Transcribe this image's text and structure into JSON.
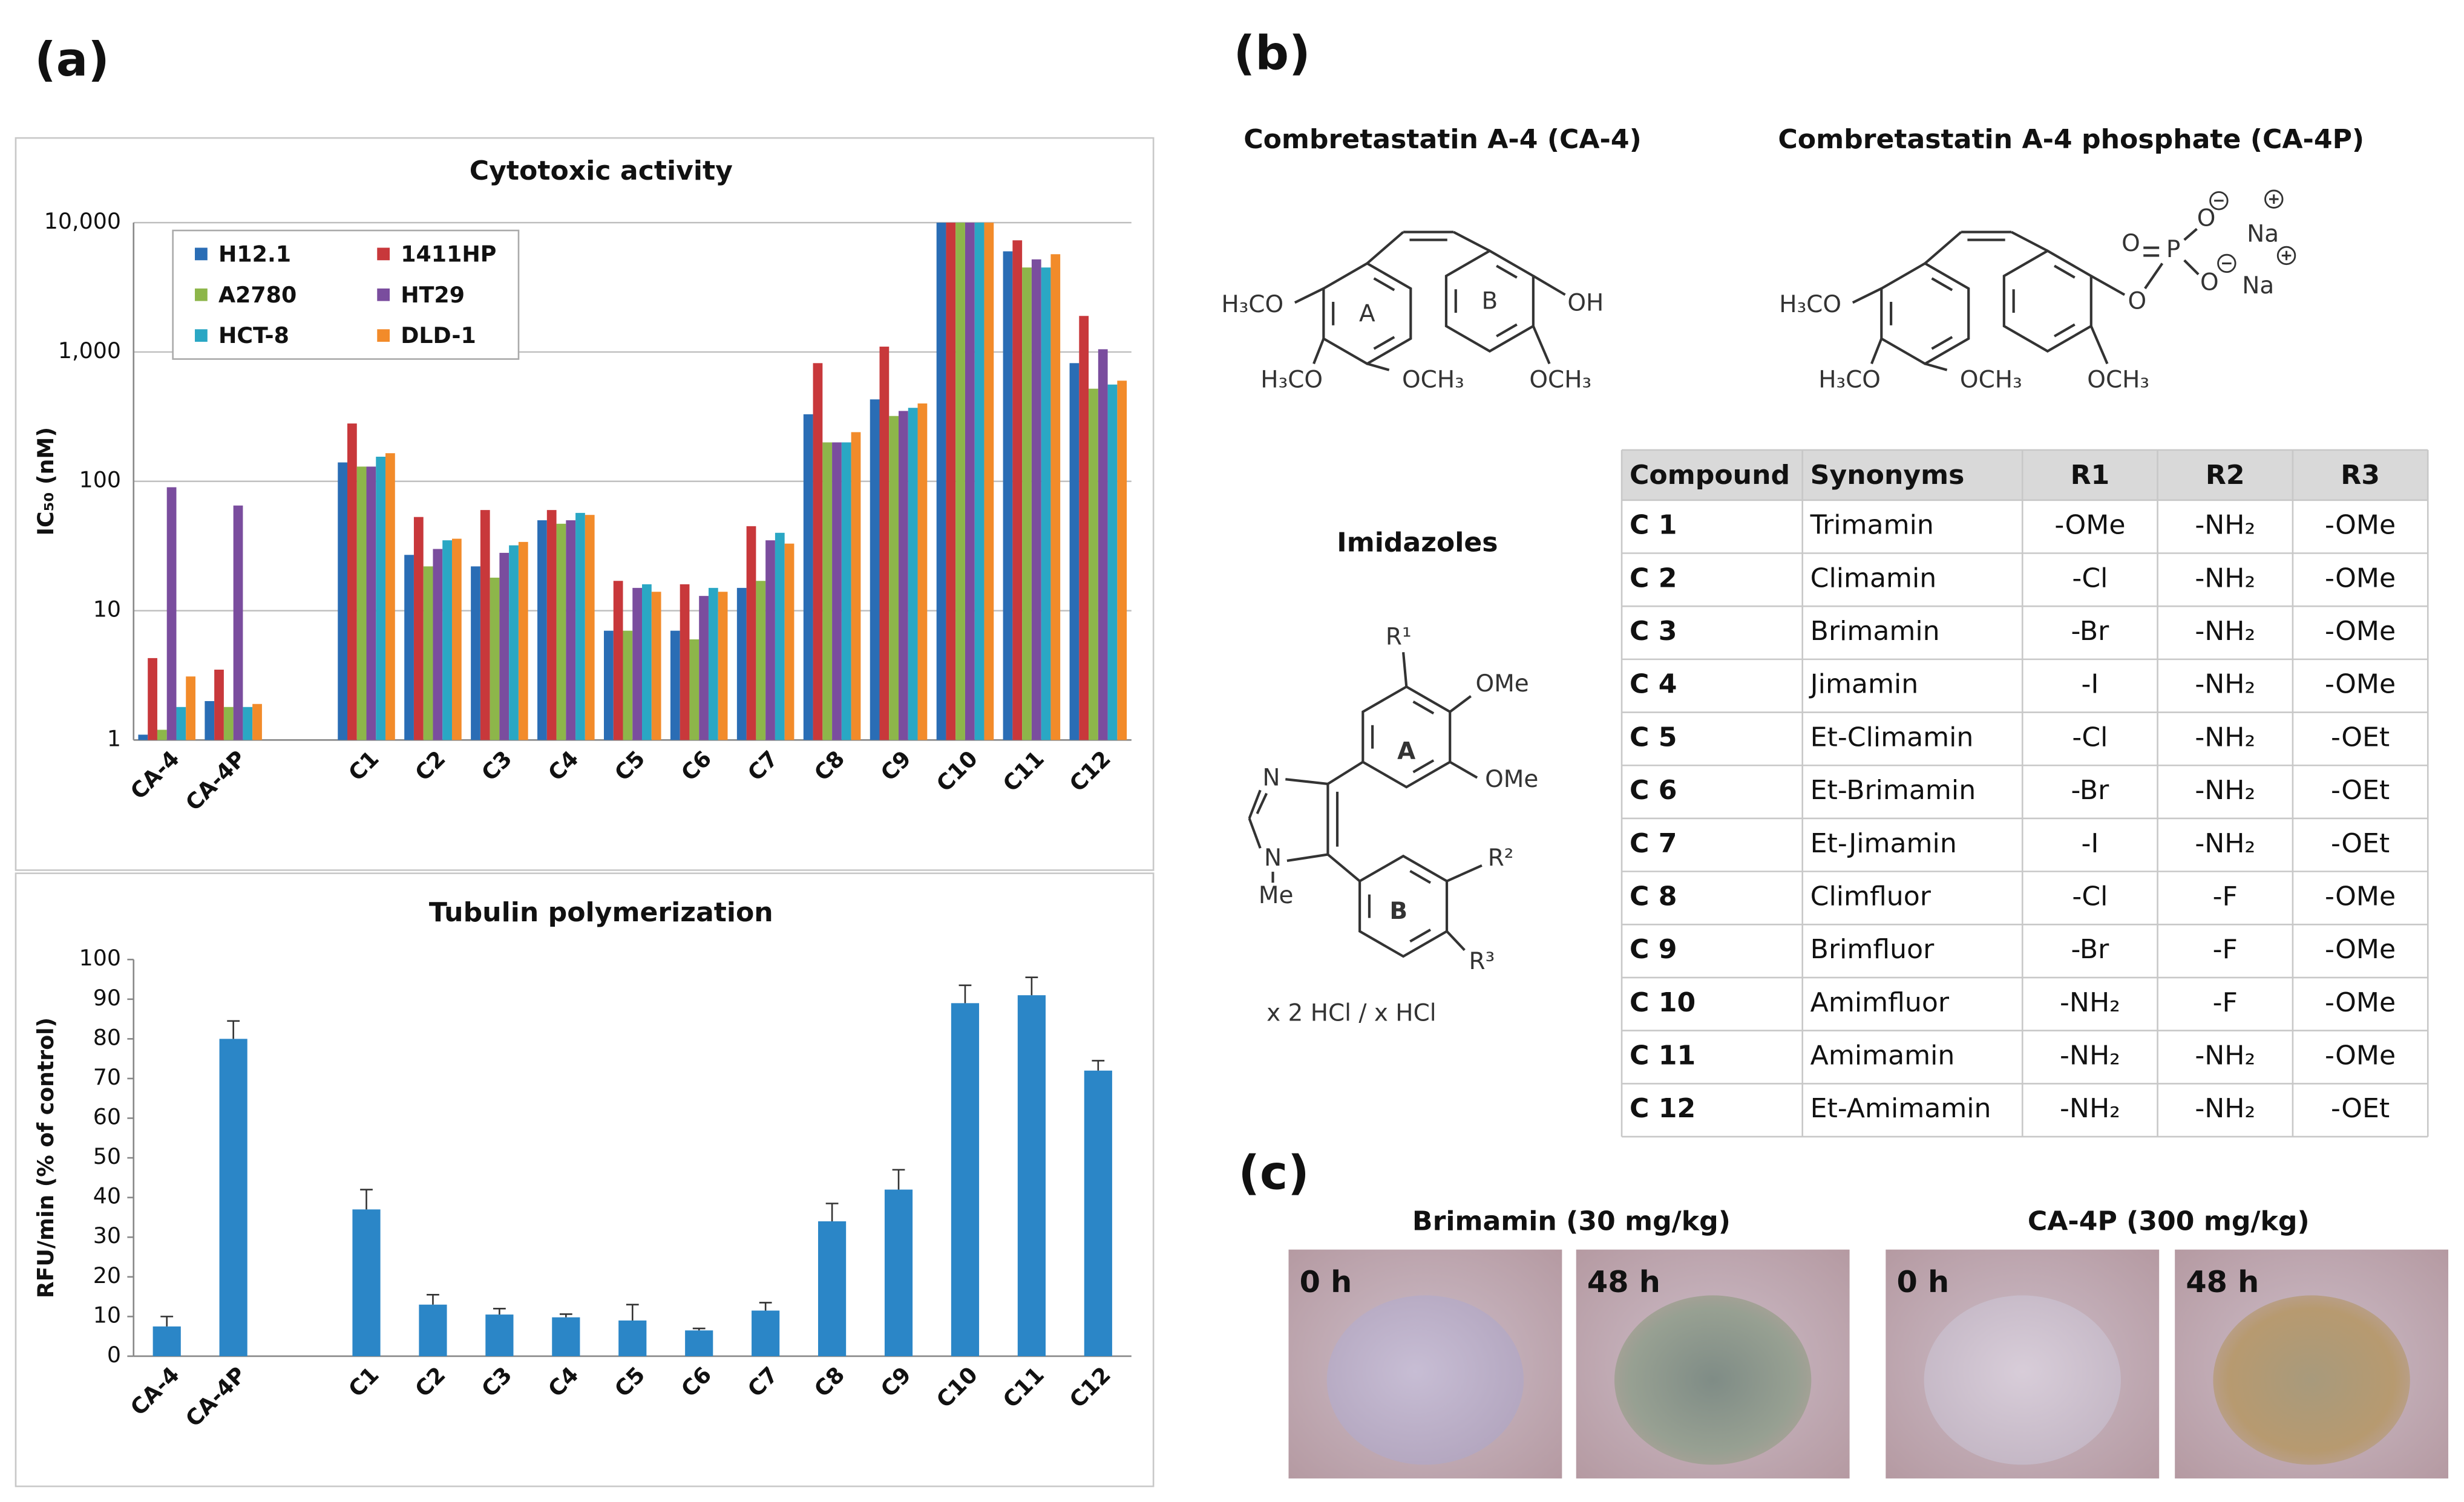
{
  "panels": [
    "(a)",
    "(b)",
    "(c)"
  ],
  "chart_data": [
    {
      "type": "bar",
      "title": "Cytotoxic activity",
      "ylabel": "IC₅₀ (nM)",
      "log_scale": true,
      "grid": true,
      "legend": "upper left",
      "categories": [
        "CA-4",
        "CA-4P",
        null,
        "C1",
        "C2",
        "C3",
        "C4",
        "C5",
        "C6",
        "C7",
        "C8",
        "C9",
        "C10",
        "C11",
        "C12"
      ],
      "ylim": [
        1,
        10000
      ],
      "yticks": [
        1,
        10,
        100,
        {
          "value": 1000,
          "label": "1,000"
        },
        {
          "value": 10000,
          "label": "10,000"
        }
      ],
      "series": [
        {
          "name": "H12.1",
          "color": "#2a6db5",
          "values": [
            1.1,
            2.0,
            null,
            140,
            27,
            22,
            50,
            7,
            7,
            15,
            330,
            430,
            10000,
            6000,
            820
          ]
        },
        {
          "name": "1411HP",
          "color": "#c8383b",
          "values": [
            4.3,
            3.5,
            null,
            280,
            53,
            60,
            60,
            17,
            16,
            45,
            820,
            1100,
            10000,
            7300,
            1900
          ]
        },
        {
          "name": "A2780",
          "color": "#8db64a",
          "values": [
            1.2,
            1.8,
            null,
            130,
            22,
            18,
            47,
            7,
            6,
            17,
            200,
            320,
            10000,
            4500,
            520
          ]
        },
        {
          "name": "HT29",
          "color": "#7a4d9e",
          "values": [
            90,
            65,
            null,
            130,
            30,
            28,
            50,
            15,
            13,
            35,
            200,
            350,
            10000,
            5200,
            1050
          ]
        },
        {
          "name": "HCT-8",
          "color": "#2aa7c4",
          "values": [
            1.8,
            1.8,
            null,
            155,
            35,
            32,
            57,
            16,
            15,
            40,
            200,
            370,
            10000,
            4500,
            560
          ]
        },
        {
          "name": "DLD-1",
          "color": "#f28b2a",
          "values": [
            3.1,
            1.9,
            null,
            165,
            36,
            34,
            55,
            14,
            14,
            33,
            240,
            400,
            10000,
            5700,
            600
          ]
        }
      ]
    },
    {
      "type": "bar",
      "title": "Tubulin polymerization",
      "ylabel": "RFU/min (% of control)",
      "grid": false,
      "color": "#2b86c7",
      "categories": [
        "CA-4",
        "CA-4P",
        null,
        "C1",
        "C2",
        "C3",
        "C4",
        "C5",
        "C6",
        "C7",
        "C8",
        "C9",
        "C10",
        "C11",
        "C12"
      ],
      "values": [
        7.5,
        80,
        null,
        37,
        13,
        10.5,
        9.8,
        9,
        6.5,
        11.5,
        34,
        42,
        89,
        91,
        72
      ],
      "errors": [
        2.5,
        4.5,
        null,
        5,
        2.5,
        1.5,
        0.8,
        4,
        0.5,
        2,
        4.5,
        5,
        4.5,
        4.5,
        2.5
      ],
      "ylim": [
        0,
        100
      ],
      "yticks": [
        0,
        10,
        20,
        30,
        40,
        50,
        60,
        70,
        80,
        90,
        100
      ]
    }
  ],
  "structures": {
    "ca4": {
      "title": "Combretastatin A-4 (CA-4)",
      "labels": [
        "H₃CO",
        "H₃CO",
        "OCH₃",
        "OCH₃",
        "OH",
        "A",
        "B"
      ]
    },
    "ca4p": {
      "title": "Combretastatin A-4 phosphate (CA-4P)",
      "labels": [
        "H₃CO",
        "H₃CO",
        "OCH₃",
        "OCH₃",
        "O",
        "P",
        "O",
        "O",
        "O",
        "Na",
        "Na"
      ]
    },
    "imidazoles": {
      "title": "Imidazoles",
      "labels": [
        "R¹",
        "OMe",
        "OMe",
        "A",
        "N",
        "N",
        "Me",
        "B",
        "R²",
        "R³",
        "x 2 HCl / x HCl"
      ]
    }
  },
  "table": {
    "header": [
      "Compound",
      "Synonyms",
      "R1",
      "R2",
      "R3"
    ],
    "rows": [
      [
        "C 1",
        "Trimamin",
        "-OMe",
        "-NH₂",
        "-OMe"
      ],
      [
        "C 2",
        "Climamin",
        "-Cl",
        "-NH₂",
        "-OMe"
      ],
      [
        "C 3",
        "Brimamin",
        "-Br",
        "-NH₂",
        "-OMe"
      ],
      [
        "C 4",
        "Jimamin",
        "-I",
        "-NH₂",
        "-OMe"
      ],
      [
        "C 5",
        "Et-Climamin",
        "-Cl",
        "-NH₂",
        "-OEt"
      ],
      [
        "C 6",
        "Et-Brimamin",
        "-Br",
        "-NH₂",
        "-OEt"
      ],
      [
        "C 7",
        "Et-Jimamin",
        "-I",
        "-NH₂",
        "-OEt"
      ],
      [
        "C 8",
        "Climfluor",
        "-Cl",
        "-F",
        "-OMe"
      ],
      [
        "C 9",
        "Brimfluor",
        "-Br",
        "-F",
        "-OMe"
      ],
      [
        "C 10",
        "Amimfluor",
        "-NH₂",
        "-F",
        "-OMe"
      ],
      [
        "C 11",
        "Amimamin",
        "-NH₂",
        "-NH₂",
        "-OMe"
      ],
      [
        "C 12",
        "Et-Amimamin",
        "-NH₂",
        "-NH₂",
        "-OEt"
      ]
    ]
  },
  "photos": {
    "groups": [
      {
        "title": "Brimamin (30 mg/kg)",
        "times": [
          "0 h",
          "48 h"
        ]
      },
      {
        "title": "CA-4P (300 mg/kg)",
        "times": [
          "0 h",
          "48 h"
        ]
      }
    ]
  }
}
